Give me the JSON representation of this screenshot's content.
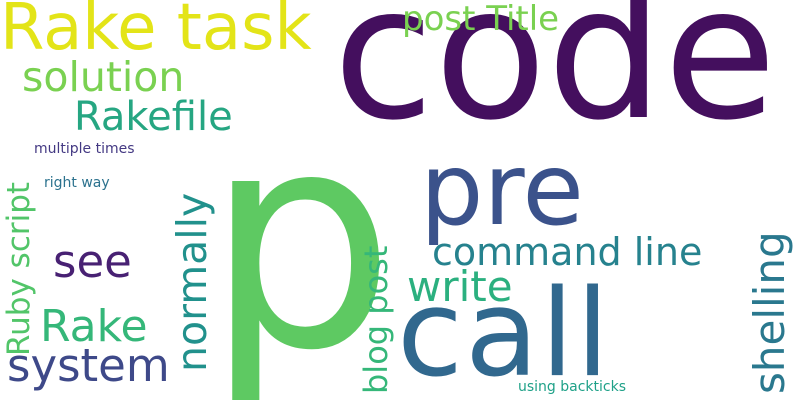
{
  "words": [
    {
      "text": "p",
      "color": "#5ec962"
    },
    {
      "text": "code",
      "color": "#440f5e"
    },
    {
      "text": "call",
      "color": "#31688e"
    },
    {
      "text": "pre",
      "color": "#3b528b"
    },
    {
      "text": "Rake task",
      "color": "#e3e418"
    },
    {
      "text": "post Title",
      "color": "#7ad151"
    },
    {
      "text": "solution",
      "color": "#7ad151"
    },
    {
      "text": "Rakefile",
      "color": "#26a682"
    },
    {
      "text": "command line",
      "color": "#26828e"
    },
    {
      "text": "write",
      "color": "#2bb07f"
    },
    {
      "text": "see",
      "color": "#482173"
    },
    {
      "text": "Rake",
      "color": "#35b779"
    },
    {
      "text": "system",
      "color": "#3e4989"
    },
    {
      "text": "multiple times",
      "color": "#443983"
    },
    {
      "text": "right way",
      "color": "#2c728e"
    },
    {
      "text": "using backticks",
      "color": "#1fa188"
    },
    {
      "text": "Ruby script",
      "color": "#52c569"
    },
    {
      "text": "normally",
      "color": "#21918c"
    },
    {
      "text": "blog post",
      "color": "#35b779"
    },
    {
      "text": "shelling",
      "color": "#2a788e"
    }
  ]
}
